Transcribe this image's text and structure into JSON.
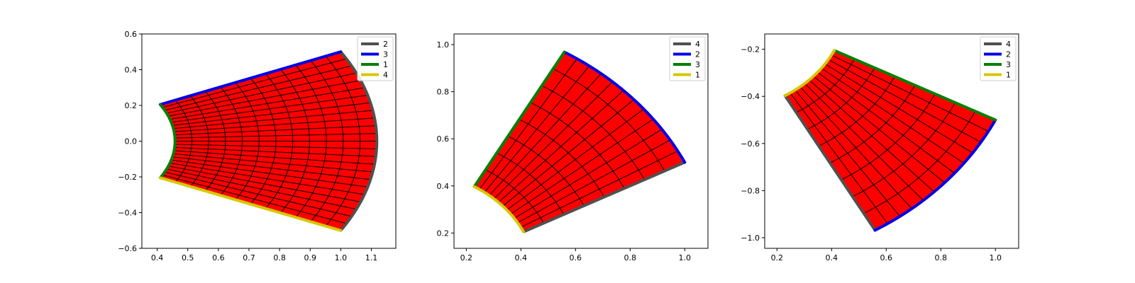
{
  "chart_data": [
    {
      "type": "mesh",
      "grid": true,
      "legend_placement": "upper-right",
      "mesh": {
        "nr": 12,
        "nt": 24,
        "r_inner": 0.4583,
        "r_outer": 1.118,
        "theta_start_deg": -26.57,
        "theta_end_deg": 26.57,
        "center": [
          0,
          0
        ]
      },
      "xlim": [
        0.35,
        1.18
      ],
      "ylim": [
        -0.6,
        0.6
      ],
      "xticks": [
        0.4,
        0.5,
        0.6,
        0.7,
        0.8,
        0.9,
        1.0,
        1.1
      ],
      "yticks": [
        -0.6,
        -0.4,
        -0.2,
        0.0,
        0.2,
        0.4,
        0.6
      ],
      "xticklabels": [
        "0.4",
        "0.5",
        "0.6",
        "0.7",
        "0.8",
        "0.9",
        "1.0",
        "1.1"
      ],
      "yticklabels": [
        "−0.6",
        "−0.4",
        "−0.2",
        "0.0",
        "0.2",
        "0.4",
        "0.6"
      ],
      "boundaries": [
        {
          "name": "2",
          "color": "#505050",
          "edge": "outer"
        },
        {
          "name": "3",
          "color": "#0000e6",
          "edge": "end"
        },
        {
          "name": "1",
          "color": "#008000",
          "edge": "inner"
        },
        {
          "name": "4",
          "color": "#d4c800",
          "edge": "start"
        }
      ]
    },
    {
      "type": "mesh",
      "grid": true,
      "legend_placement": "upper-right",
      "mesh": {
        "nr": 8,
        "nt": 12,
        "r_inner": 0.4583,
        "r_outer": 1.118,
        "theta_start_deg": 26.57,
        "theta_end_deg": 60.0,
        "center": [
          0,
          0
        ]
      },
      "xlim": [
        0.155,
        1.085
      ],
      "ylim": [
        0.135,
        1.045
      ],
      "xticks": [
        0.2,
        0.4,
        0.6,
        0.8,
        1.0
      ],
      "yticks": [
        0.2,
        0.4,
        0.6,
        0.8,
        1.0
      ],
      "xticklabels": [
        "0.2",
        "0.4",
        "0.6",
        "0.8",
        "1.0"
      ],
      "yticklabels": [
        "0.2",
        "0.4",
        "0.6",
        "0.8",
        "1.0"
      ],
      "boundaries": [
        {
          "name": "4",
          "color": "#505050",
          "edge": "start"
        },
        {
          "name": "2",
          "color": "#0000e6",
          "edge": "outer"
        },
        {
          "name": "3",
          "color": "#008000",
          "edge": "end"
        },
        {
          "name": "1",
          "color": "#d4c800",
          "edge": "inner"
        }
      ]
    },
    {
      "type": "mesh",
      "grid": true,
      "legend_placement": "upper-right",
      "mesh": {
        "nr": 8,
        "nt": 12,
        "r_inner": 0.4583,
        "r_outer": 1.118,
        "theta_start_deg": -60.0,
        "theta_end_deg": -26.57,
        "center": [
          0,
          0
        ]
      },
      "xlim": [
        0.155,
        1.085
      ],
      "ylim": [
        -1.045,
        -0.135
      ],
      "xticks": [
        0.2,
        0.4,
        0.6,
        0.8,
        1.0
      ],
      "yticks": [
        -1.0,
        -0.8,
        -0.6,
        -0.4,
        -0.2
      ],
      "xticklabels": [
        "0.2",
        "0.4",
        "0.6",
        "0.8",
        "1.0"
      ],
      "yticklabels": [
        "−1.0",
        "−0.8",
        "−0.6",
        "−0.4",
        "−0.2"
      ],
      "boundaries": [
        {
          "name": "4",
          "color": "#505050",
          "edge": "start"
        },
        {
          "name": "2",
          "color": "#0000e6",
          "edge": "outer"
        },
        {
          "name": "3",
          "color": "#008000",
          "edge": "end"
        },
        {
          "name": "1",
          "color": "#d4c800",
          "edge": "inner"
        }
      ]
    }
  ],
  "colors": {
    "fill": "#ff0000",
    "mesh_line": "#000000"
  }
}
